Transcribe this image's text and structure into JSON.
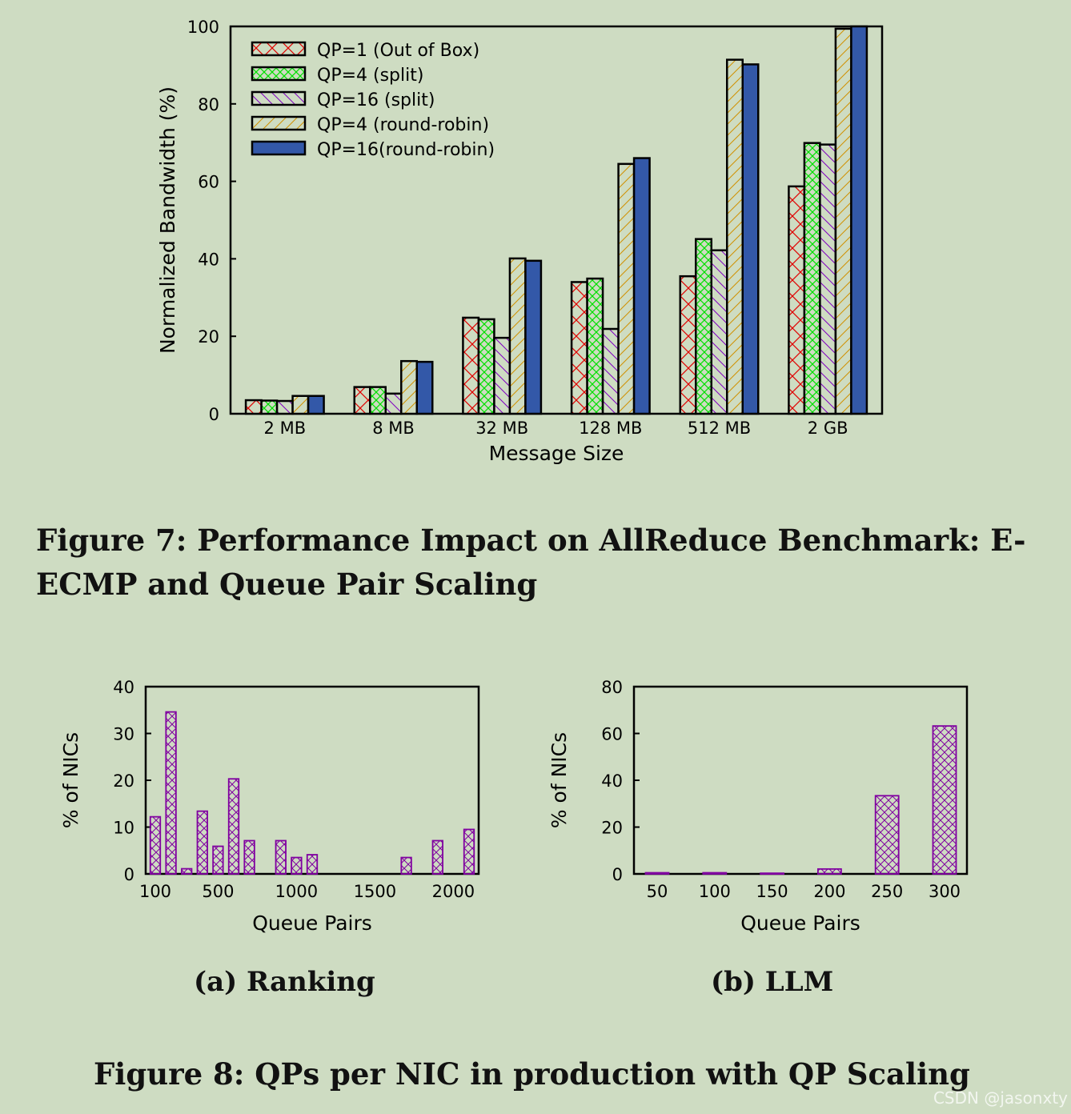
{
  "figure7": {
    "caption": "Figure 7: Performance Impact on AllReduce Benchmark: E-ECMP and Queue Pair Scaling"
  },
  "figure8": {
    "caption": "Figure 8: QPs per NIC in production with QP Scaling",
    "sub_a": "(a) Ranking",
    "sub_b": "(b) LLM"
  },
  "watermark": "CSDN @jasonxty",
  "chart_data": [
    {
      "type": "bar",
      "xlabel": "Message Size",
      "ylabel": "Normalized Bandwidth (%)",
      "ylim": [
        0,
        100
      ],
      "yticks": [
        0,
        20,
        40,
        60,
        80,
        100
      ],
      "legend_position": "top-left",
      "grid": false,
      "categories": [
        "2 MB",
        "8 MB",
        "32 MB",
        "128 MB",
        "512 MB",
        "2 GB"
      ],
      "series": [
        {
          "name": "QP=1 (Out of Box)",
          "color": "#e00000",
          "pattern": "crosshatch-large",
          "values": [
            3.5,
            6.9,
            24.8,
            34.0,
            35.5,
            58.7
          ]
        },
        {
          "name": "QP=4 (split)",
          "color": "#00e000",
          "pattern": "crosshatch-small",
          "values": [
            3.4,
            6.9,
            24.4,
            34.9,
            45.1,
            69.9
          ]
        },
        {
          "name": "QP=16 (split)",
          "color": "#8000c0",
          "pattern": "backslash",
          "values": [
            3.3,
            5.2,
            19.6,
            21.9,
            42.2,
            69.5
          ]
        },
        {
          "name": "QP=4 (round-robin)",
          "color": "#d09000",
          "pattern": "slash",
          "values": [
            4.6,
            13.6,
            40.1,
            64.5,
            91.4,
            99.4
          ]
        },
        {
          "name": "QP=16(round-robin)",
          "color": "#3358a8",
          "pattern": "solid",
          "values": [
            4.6,
            13.4,
            39.5,
            66.0,
            90.2,
            100.0
          ]
        }
      ]
    },
    {
      "type": "bar",
      "title": "(a) Ranking",
      "xlabel": "Queue Pairs",
      "ylabel": "% of NICs",
      "ylim": [
        0,
        40
      ],
      "yticks": [
        0,
        10,
        20,
        30,
        40
      ],
      "xticks": [
        "100",
        "500",
        "1000",
        "1500",
        "2000"
      ],
      "color": "#8000a0",
      "x": [
        100,
        200,
        300,
        400,
        500,
        600,
        700,
        800,
        900,
        1000,
        1100,
        1200,
        1300,
        1400,
        1500,
        1600,
        1700,
        1800,
        1900,
        2000,
        2100
      ],
      "values": [
        12.2,
        34.6,
        1.1,
        13.4,
        5.9,
        20.3,
        7.1,
        0,
        7.1,
        3.5,
        4.1,
        0,
        0,
        0,
        0,
        0,
        3.5,
        0,
        7.1,
        0,
        9.5
      ]
    },
    {
      "type": "bar",
      "title": "(b) LLM",
      "xlabel": "Queue Pairs",
      "ylabel": "% of NICs",
      "ylim": [
        0,
        80
      ],
      "yticks": [
        0,
        20,
        40,
        60,
        80
      ],
      "color": "#8000a0",
      "categories": [
        "50",
        "100",
        "150",
        "200",
        "250",
        "300"
      ],
      "values": [
        0.5,
        0.5,
        0.3,
        2.1,
        33.4,
        63.2
      ]
    }
  ]
}
